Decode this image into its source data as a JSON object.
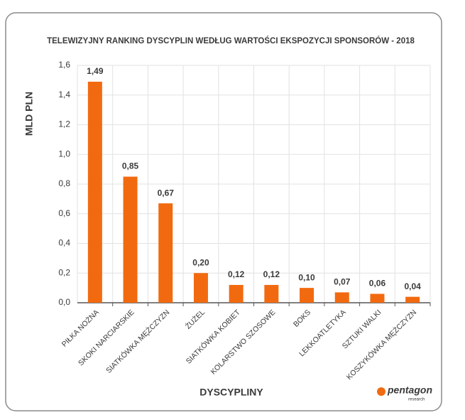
{
  "chart_data": {
    "type": "bar",
    "title": "TELEWIZYJNY RANKING DYSCYPLIN WEDŁUG WARTOŚCI EKSPOZYCJI SPONSORÓW - 2018",
    "y_label": "MLD PLN",
    "x_label": "DYSCYPLINY",
    "categories": [
      "PIŁKA NOŻNA",
      "SKOKI NARCIARSKIE",
      "SIATKÓWKA MĘŻCZYZN",
      "ŻUŻEL",
      "SIATKÓWKA KOBIET",
      "KOLARSTWO SZOSOWE",
      "BOKS",
      "LEKKOATLETYKA",
      "SZTUKI WALKI",
      "KOSZYKÓWKA MĘŻCZYZN"
    ],
    "values": [
      1.49,
      0.85,
      0.67,
      0.2,
      0.12,
      0.12,
      0.1,
      0.07,
      0.06,
      0.04
    ],
    "value_labels": [
      "1,49",
      "0,85",
      "0,67",
      "0,20",
      "0,12",
      "0,12",
      "0,10",
      "0,07",
      "0,06",
      "0,04"
    ],
    "color": "#f26a10",
    "ylim": [
      0,
      1.6
    ],
    "yticks": [
      {
        "value": 0,
        "label": "0,0"
      },
      {
        "value": 0.2,
        "label": "0,2"
      },
      {
        "value": 0.4,
        "label": "0,4"
      },
      {
        "value": 0.6,
        "label": "0,6"
      },
      {
        "value": 0.8,
        "label": "0,8"
      },
      {
        "value": 1.0,
        "label": "1,0"
      },
      {
        "value": 1.2,
        "label": "1,2"
      },
      {
        "value": 1.4,
        "label": "1,4"
      },
      {
        "value": 1.6,
        "label": "1,6"
      }
    ],
    "grid": true
  },
  "logo": {
    "name": "pentagon",
    "tagline": "research"
  }
}
